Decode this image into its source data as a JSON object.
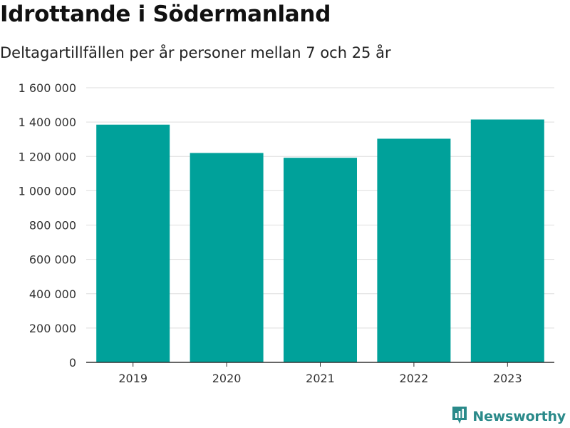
{
  "header": {
    "title": "Idrottande i Södermanland",
    "subtitle": "Deltagartillfällen per år personer mellan 7 och 25 år"
  },
  "brand": {
    "name": "Newsworthy",
    "color": "#2a8a8a"
  },
  "chart_data": {
    "type": "bar",
    "title": "Idrottande i Södermanland",
    "subtitle": "Deltagartillfällen per år personer mellan 7 och 25 år",
    "xlabel": "",
    "ylabel": "",
    "categories": [
      "2019",
      "2020",
      "2021",
      "2022",
      "2023"
    ],
    "values": [
      1385000,
      1220000,
      1192000,
      1303000,
      1415000
    ],
    "ylim": [
      0,
      1600000
    ],
    "yticks": [
      0,
      200000,
      400000,
      600000,
      800000,
      1000000,
      1200000,
      1400000,
      1600000
    ],
    "ytick_labels": [
      "0",
      "200 000",
      "400 000",
      "600 000",
      "800 000",
      "1 000 000",
      "1 200 000",
      "1 400 000",
      "1 600 000"
    ],
    "grid": true,
    "bar_color": "#00a19a",
    "grid_color": "#dddddd",
    "axis_color": "#333333"
  }
}
